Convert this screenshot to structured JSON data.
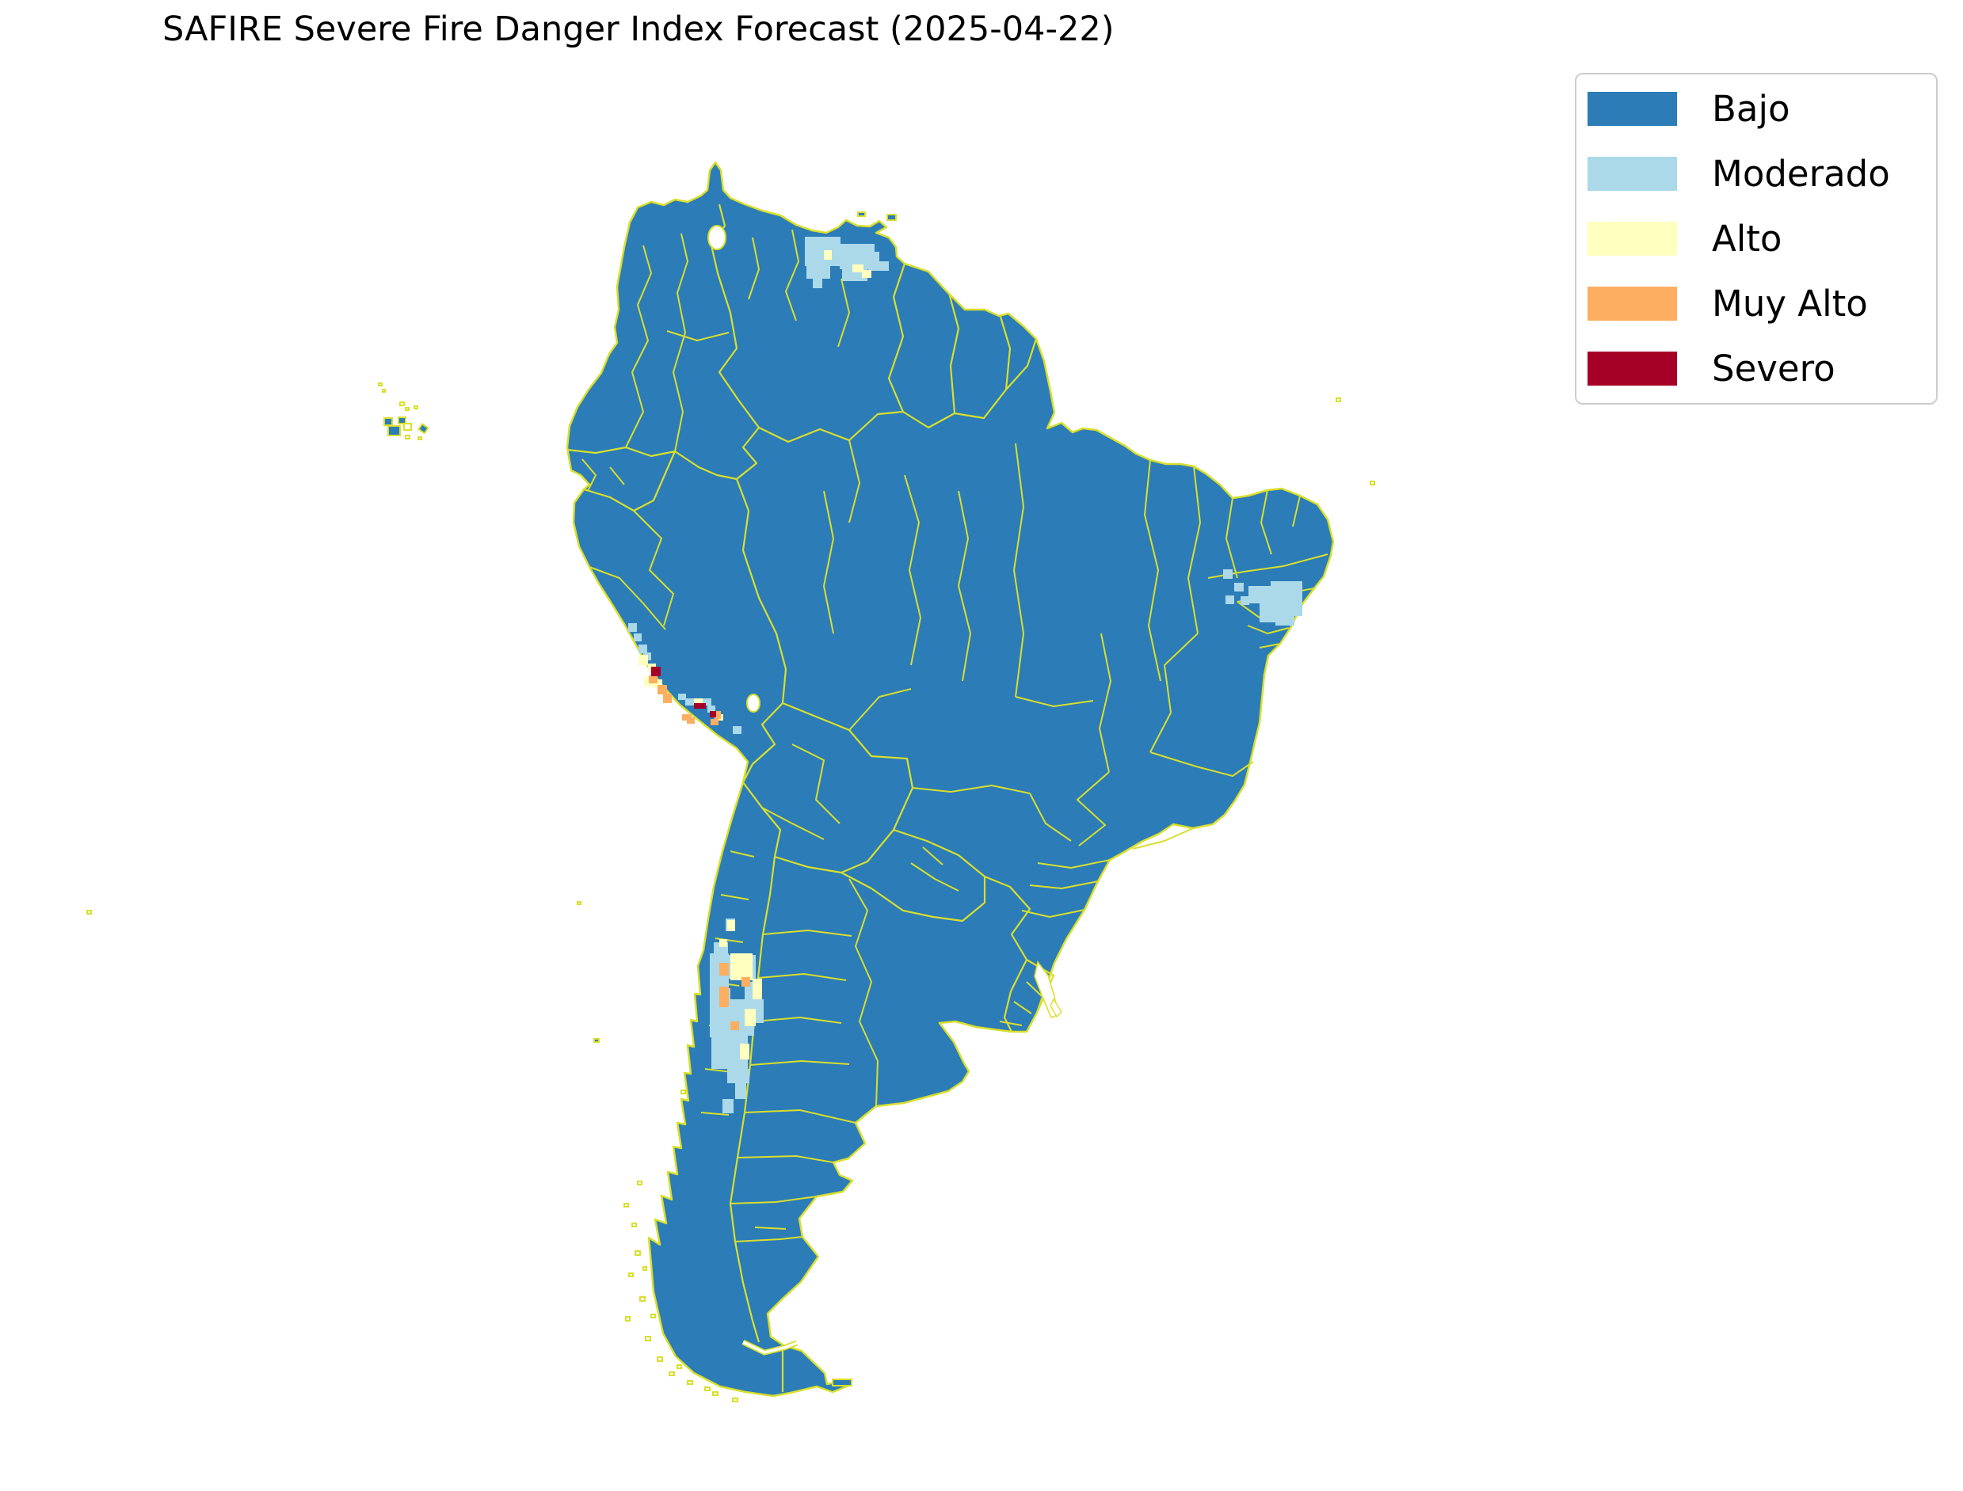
{
  "title": "SAFIRE Severe Fire Danger Index Forecast (2025-04-22)",
  "legend": {
    "items": [
      {
        "label": "Bajo",
        "color": "#2c7cb8"
      },
      {
        "label": "Moderado",
        "color": "#abd9e9"
      },
      {
        "label": "Alto",
        "color": "#ffffbf"
      },
      {
        "label": "Muy Alto",
        "color": "#fdae61"
      },
      {
        "label": "Severo",
        "color": "#a50026"
      }
    ]
  },
  "map": {
    "land_color": "#2c7cb8",
    "boundary_color": "#d9df2b",
    "ocean_color": "#ffffff",
    "level_colors": {
      "moderado": "#abd9e9",
      "alto": "#ffffbf",
      "muy_alto": "#fdae61",
      "severo": "#a50026"
    },
    "cells": {
      "moderado": [
        [
          1016,
          299,
          45,
          37
        ],
        [
          1018,
          336,
          30,
          16
        ],
        [
          1060,
          308,
          44,
          32
        ],
        [
          1063,
          340,
          32,
          15
        ],
        [
          1096,
          318,
          14,
          24
        ],
        [
          1108,
          330,
          14,
          12
        ],
        [
          1026,
          352,
          12,
          12
        ],
        [
          1604,
          734,
          40,
          44
        ],
        [
          1576,
          740,
          30,
          22
        ],
        [
          1590,
          760,
          28,
          26
        ],
        [
          1610,
          778,
          24,
          12
        ],
        [
          1544,
          719,
          12,
          12
        ],
        [
          1558,
          736,
          12,
          11
        ],
        [
          1547,
          752,
          11,
          11
        ],
        [
          1566,
          753,
          11,
          11
        ],
        [
          901,
          1190,
          18,
          14
        ],
        [
          896,
          1204,
          24,
          44
        ],
        [
          920,
          1206,
          34,
          30
        ],
        [
          916,
          1160,
          12,
          16
        ],
        [
          896,
          1248,
          26,
          62
        ],
        [
          920,
          1262,
          32,
          46
        ],
        [
          898,
          1308,
          46,
          42
        ],
        [
          918,
          1350,
          28,
          18
        ],
        [
          928,
          1366,
          14,
          22
        ],
        [
          940,
          1240,
          14,
          34
        ],
        [
          952,
          1262,
          12,
          30
        ],
        [
          912,
          1388,
          14,
          18
        ],
        [
          793,
          787,
          11,
          11
        ],
        [
          800,
          800,
          10,
          10
        ],
        [
          806,
          814,
          11,
          11
        ],
        [
          812,
          824,
          10,
          10
        ],
        [
          865,
          882,
          11,
          9
        ],
        [
          887,
          882,
          11,
          9
        ],
        [
          893,
          891,
          10,
          9
        ],
        [
          856,
          876,
          10,
          8
        ],
        [
          925,
          917,
          11,
          10
        ]
      ],
      "alto": [
        [
          1040,
          316,
          10,
          12
        ],
        [
          1076,
          334,
          14,
          10
        ],
        [
          1088,
          341,
          12,
          10
        ],
        [
          922,
          1204,
          28,
          34
        ],
        [
          940,
          1274,
          14,
          22
        ],
        [
          950,
          1236,
          12,
          26
        ],
        [
          918,
          1162,
          10,
          14
        ],
        [
          934,
          1318,
          12,
          20
        ],
        [
          908,
          1186,
          10,
          10
        ],
        [
          806,
          827,
          12,
          13
        ],
        [
          813,
          855,
          12,
          12
        ],
        [
          825,
          858,
          11,
          11
        ],
        [
          818,
          838,
          10,
          10
        ],
        [
          876,
          882,
          11,
          7
        ],
        [
          902,
          902,
          11,
          8
        ]
      ],
      "muy_alto": [
        [
          908,
          1216,
          12,
          16
        ],
        [
          936,
          1234,
          11,
          12
        ],
        [
          908,
          1246,
          12,
          26
        ],
        [
          922,
          1290,
          11,
          11
        ],
        [
          819,
          853,
          11,
          10
        ],
        [
          830,
          865,
          12,
          12
        ],
        [
          837,
          876,
          11,
          12
        ],
        [
          861,
          902,
          12,
          8
        ],
        [
          867,
          906,
          10,
          8
        ],
        [
          903,
          898,
          7,
          10
        ],
        [
          897,
          908,
          10,
          8
        ]
      ],
      "severo": [
        [
          822,
          842,
          12,
          12
        ],
        [
          876,
          888,
          15,
          7
        ],
        [
          896,
          898,
          8,
          8
        ]
      ]
    }
  }
}
